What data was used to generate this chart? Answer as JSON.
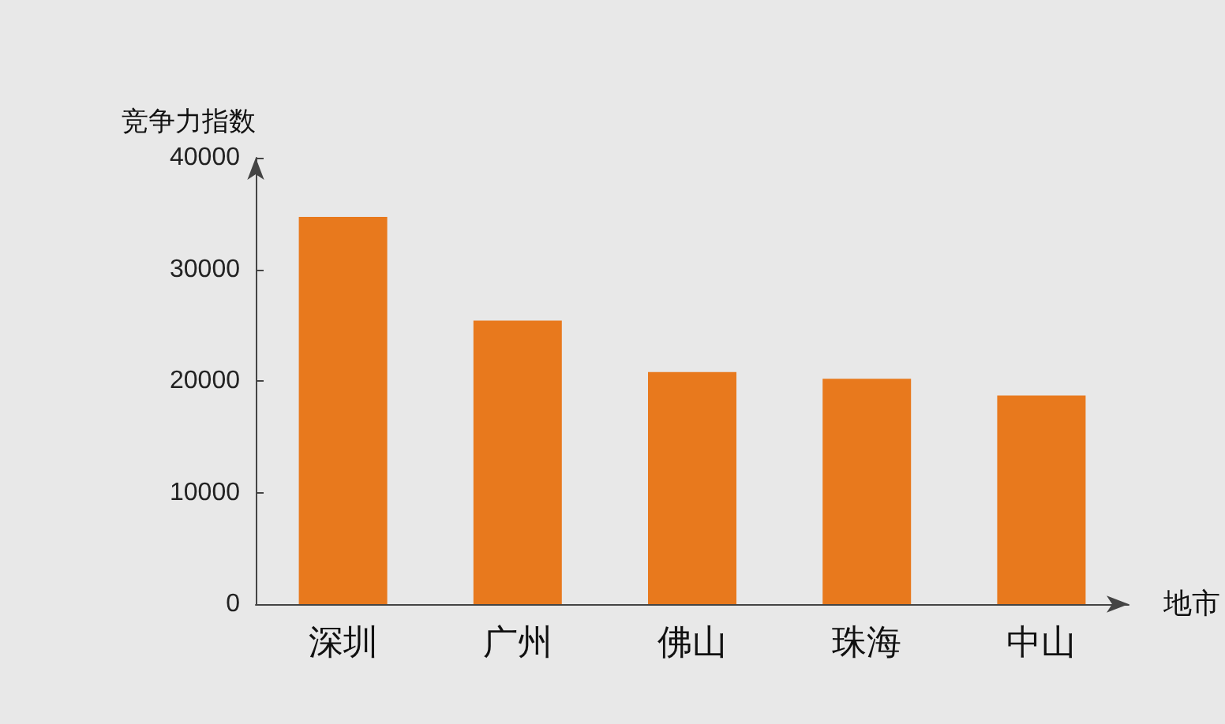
{
  "chart_data": {
    "type": "bar",
    "xlabel": "地市",
    "ylabel": "竞争力指数",
    "categories": [
      "深圳",
      "广州",
      "佛山",
      "珠海",
      "中山"
    ],
    "values": [
      34700,
      25400,
      20800,
      20200,
      18700
    ],
    "color": "#e8791d",
    "ylim": [
      0,
      40000
    ],
    "yticks": [
      0,
      10000,
      20000,
      30000,
      40000
    ],
    "grid": false
  }
}
